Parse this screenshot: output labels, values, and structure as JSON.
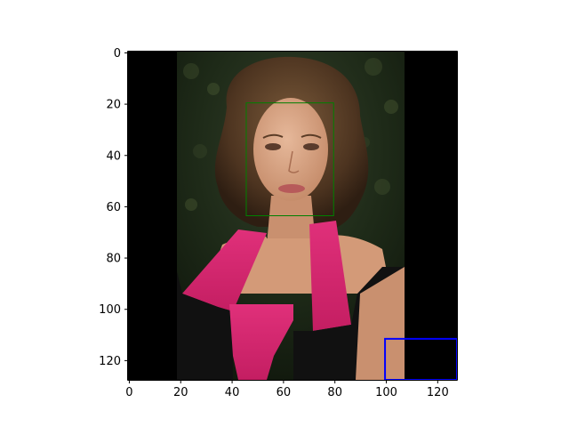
{
  "figure": {
    "image_alt": "portrait of a woman with curly brown hair in a pink and black dress",
    "image_size": [
      128,
      128
    ],
    "content_columns": [
      19,
      108
    ],
    "x_ticks": [
      {
        "value": 0,
        "label": "0"
      },
      {
        "value": 20,
        "label": "20"
      },
      {
        "value": 40,
        "label": "40"
      },
      {
        "value": 60,
        "label": "60"
      },
      {
        "value": 80,
        "label": "80"
      },
      {
        "value": 100,
        "label": "100"
      },
      {
        "value": 120,
        "label": "120"
      }
    ],
    "y_ticks": [
      {
        "value": 0,
        "label": "0"
      },
      {
        "value": 20,
        "label": "20"
      },
      {
        "value": 40,
        "label": "40"
      },
      {
        "value": 60,
        "label": "60"
      },
      {
        "value": 80,
        "label": "80"
      },
      {
        "value": 100,
        "label": "100"
      },
      {
        "value": 120,
        "label": "120"
      }
    ],
    "boxes": [
      {
        "name": "face-box",
        "color": "#008000",
        "x0": 45.5,
        "y0": 19.5,
        "x1": 79.5,
        "y1": 63.5
      },
      {
        "name": "corner-box",
        "color": "#0000ff",
        "x0": 99.5,
        "y0": 111.5,
        "x1": 127.5,
        "y1": 127.5
      }
    ]
  }
}
